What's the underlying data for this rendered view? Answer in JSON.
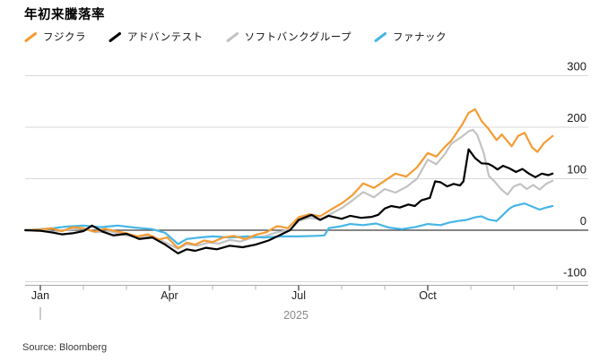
{
  "header": {
    "title": "年初来騰落率"
  },
  "legend": {
    "items": [
      {
        "label": "フジクラ",
        "color": "#F59B32"
      },
      {
        "label": "アドバンテスト",
        "color": "#000000"
      },
      {
        "label": "ソフトバンクグループ",
        "color": "#C3C3C3"
      },
      {
        "label": "ファナック",
        "color": "#46B6E6"
      }
    ]
  },
  "footer": {
    "source": "Source: Bloomberg"
  },
  "chart_data": {
    "type": "line",
    "title": "年初来騰落率",
    "ylabel": "",
    "xlabel": "",
    "x_unit": "months since 2025-01-01",
    "ylim": [
      -100,
      300
    ],
    "grid": "horizontal",
    "legend_position": "top",
    "y_axis": {
      "side": "right",
      "ticks": [
        -100,
        0,
        100,
        200,
        300
      ],
      "zero_line": true
    },
    "x_axis": {
      "year_label": "2025",
      "major_ticks": [
        {
          "label": "Jan",
          "month": 0
        },
        {
          "label": "Apr",
          "month": 3
        },
        {
          "label": "Jul",
          "month": 6
        },
        {
          "label": "Oct",
          "month": 9
        }
      ],
      "minor_tick_months": [
        1,
        2,
        4,
        5,
        7,
        8,
        10,
        11,
        12
      ]
    },
    "series": [
      {
        "name": "フジクラ",
        "key": "fujikura",
        "color": "#F59B32",
        "points": [
          [
            -0.35,
            0
          ],
          [
            0,
            1
          ],
          [
            0.25,
            4
          ],
          [
            0.5,
            -2
          ],
          [
            0.75,
            6
          ],
          [
            1,
            4
          ],
          [
            1.25,
            -3
          ],
          [
            1.5,
            3
          ],
          [
            1.75,
            -2
          ],
          [
            2,
            -6
          ],
          [
            2.25,
            -12
          ],
          [
            2.5,
            -8
          ],
          [
            2.75,
            -18
          ],
          [
            2.95,
            -14
          ],
          [
            3.2,
            -35
          ],
          [
            3.4,
            -24
          ],
          [
            3.6,
            -28
          ],
          [
            3.8,
            -20
          ],
          [
            4,
            -23
          ],
          [
            4.25,
            -14
          ],
          [
            4.5,
            -11
          ],
          [
            4.75,
            -17
          ],
          [
            5,
            -9
          ],
          [
            5.25,
            -4
          ],
          [
            5.5,
            8
          ],
          [
            5.75,
            4
          ],
          [
            6,
            25
          ],
          [
            6.25,
            31
          ],
          [
            6.5,
            27
          ],
          [
            6.75,
            40
          ],
          [
            7,
            52
          ],
          [
            7.25,
            68
          ],
          [
            7.5,
            91
          ],
          [
            7.75,
            82
          ],
          [
            8,
            96
          ],
          [
            8.25,
            110
          ],
          [
            8.5,
            104
          ],
          [
            8.75,
            122
          ],
          [
            9,
            150
          ],
          [
            9.2,
            143
          ],
          [
            9.4,
            162
          ],
          [
            9.55,
            174
          ],
          [
            9.8,
            205
          ],
          [
            9.95,
            228
          ],
          [
            10.1,
            235
          ],
          [
            10.25,
            212
          ],
          [
            10.4,
            198
          ],
          [
            10.6,
            175
          ],
          [
            10.72,
            186
          ],
          [
            10.95,
            163
          ],
          [
            11.1,
            183
          ],
          [
            11.25,
            189
          ],
          [
            11.42,
            161
          ],
          [
            11.55,
            152
          ],
          [
            11.7,
            169
          ],
          [
            11.9,
            183
          ]
        ]
      },
      {
        "name": "アドバンテスト",
        "key": "advantest",
        "color": "#000000",
        "points": [
          [
            -0.35,
            0
          ],
          [
            0,
            -1
          ],
          [
            0.25,
            -4
          ],
          [
            0.5,
            -8
          ],
          [
            0.75,
            -6
          ],
          [
            1,
            -2
          ],
          [
            1.2,
            9
          ],
          [
            1.45,
            -3
          ],
          [
            1.7,
            -10
          ],
          [
            2,
            -7
          ],
          [
            2.3,
            -17
          ],
          [
            2.6,
            -14
          ],
          [
            2.9,
            -28
          ],
          [
            3.2,
            -45
          ],
          [
            3.4,
            -37
          ],
          [
            3.6,
            -40
          ],
          [
            3.85,
            -34
          ],
          [
            4.1,
            -37
          ],
          [
            4.4,
            -30
          ],
          [
            4.7,
            -33
          ],
          [
            5,
            -28
          ],
          [
            5.3,
            -20
          ],
          [
            5.6,
            -8
          ],
          [
            5.8,
            0
          ],
          [
            6,
            20
          ],
          [
            6.3,
            30
          ],
          [
            6.5,
            20
          ],
          [
            6.7,
            28
          ],
          [
            7,
            22
          ],
          [
            7.2,
            28
          ],
          [
            7.45,
            24
          ],
          [
            7.7,
            26
          ],
          [
            7.85,
            30
          ],
          [
            8,
            42
          ],
          [
            8.15,
            47
          ],
          [
            8.35,
            44
          ],
          [
            8.55,
            50
          ],
          [
            8.7,
            47
          ],
          [
            8.85,
            58
          ],
          [
            9.05,
            63
          ],
          [
            9.17,
            95
          ],
          [
            9.3,
            93
          ],
          [
            9.45,
            85
          ],
          [
            9.6,
            90
          ],
          [
            9.75,
            87
          ],
          [
            9.83,
            95
          ],
          [
            9.95,
            157
          ],
          [
            10.1,
            140
          ],
          [
            10.25,
            130
          ],
          [
            10.4,
            129
          ],
          [
            10.5,
            125
          ],
          [
            10.62,
            118
          ],
          [
            10.75,
            125
          ],
          [
            10.9,
            120
          ],
          [
            11.05,
            113
          ],
          [
            11.2,
            119
          ],
          [
            11.35,
            110
          ],
          [
            11.5,
            103
          ],
          [
            11.65,
            110
          ],
          [
            11.8,
            107
          ],
          [
            11.9,
            110
          ]
        ]
      },
      {
        "name": "ソフトバンクグループ",
        "key": "softbank-group",
        "color": "#C3C3C3",
        "points": [
          [
            -0.35,
            0
          ],
          [
            0,
            1
          ],
          [
            0.3,
            -3
          ],
          [
            0.6,
            1
          ],
          [
            1,
            3
          ],
          [
            1.3,
            -4
          ],
          [
            1.6,
            -2
          ],
          [
            2,
            -10
          ],
          [
            2.3,
            -14
          ],
          [
            2.6,
            -11
          ],
          [
            2.9,
            -24
          ],
          [
            3.2,
            -36
          ],
          [
            3.4,
            -27
          ],
          [
            3.65,
            -30
          ],
          [
            3.9,
            -24
          ],
          [
            4.15,
            -26
          ],
          [
            4.4,
            -19
          ],
          [
            4.65,
            -22
          ],
          [
            4.9,
            -15
          ],
          [
            5.2,
            -12
          ],
          [
            5.5,
            -4
          ],
          [
            5.8,
            1
          ],
          [
            6,
            18
          ],
          [
            6.25,
            24
          ],
          [
            6.5,
            21
          ],
          [
            6.75,
            32
          ],
          [
            7,
            43
          ],
          [
            7.25,
            58
          ],
          [
            7.5,
            74
          ],
          [
            7.75,
            64
          ],
          [
            8,
            80
          ],
          [
            8.25,
            73
          ],
          [
            8.5,
            84
          ],
          [
            8.75,
            100
          ],
          [
            9,
            137
          ],
          [
            9.2,
            128
          ],
          [
            9.4,
            148
          ],
          [
            9.55,
            168
          ],
          [
            9.8,
            182
          ],
          [
            9.95,
            192
          ],
          [
            10.05,
            195
          ],
          [
            10.15,
            185
          ],
          [
            10.3,
            150
          ],
          [
            10.42,
            105
          ],
          [
            10.55,
            95
          ],
          [
            10.7,
            80
          ],
          [
            10.85,
            69
          ],
          [
            11,
            85
          ],
          [
            11.15,
            90
          ],
          [
            11.3,
            80
          ],
          [
            11.45,
            88
          ],
          [
            11.6,
            79
          ],
          [
            11.75,
            90
          ],
          [
            11.9,
            96
          ]
        ]
      },
      {
        "name": "ファナック",
        "key": "fanuc",
        "color": "#46B6E6",
        "points": [
          [
            -0.35,
            0
          ],
          [
            0,
            2
          ],
          [
            0.3,
            4
          ],
          [
            0.6,
            7
          ],
          [
            1,
            9
          ],
          [
            1.4,
            6
          ],
          [
            1.8,
            9
          ],
          [
            2.2,
            5
          ],
          [
            2.6,
            2
          ],
          [
            2.9,
            -5
          ],
          [
            3.2,
            -27
          ],
          [
            3.4,
            -17
          ],
          [
            3.7,
            -14
          ],
          [
            4,
            -12
          ],
          [
            4.4,
            -14
          ],
          [
            4.8,
            -12
          ],
          [
            5.2,
            -14
          ],
          [
            5.6,
            -12
          ],
          [
            6,
            -12
          ],
          [
            6.4,
            -11
          ],
          [
            6.6,
            -10
          ],
          [
            6.7,
            4
          ],
          [
            7,
            8
          ],
          [
            7.2,
            12
          ],
          [
            7.5,
            10
          ],
          [
            7.8,
            13
          ],
          [
            8.1,
            5
          ],
          [
            8.4,
            2
          ],
          [
            8.7,
            6
          ],
          [
            9,
            12
          ],
          [
            9.3,
            10
          ],
          [
            9.5,
            15
          ],
          [
            9.7,
            18
          ],
          [
            9.9,
            20
          ],
          [
            10.1,
            25
          ],
          [
            10.25,
            27
          ],
          [
            10.4,
            21
          ],
          [
            10.6,
            18
          ],
          [
            10.75,
            30
          ],
          [
            10.9,
            42
          ],
          [
            11,
            47
          ],
          [
            11.25,
            52
          ],
          [
            11.45,
            45
          ],
          [
            11.6,
            40
          ],
          [
            11.75,
            44
          ],
          [
            11.9,
            47
          ]
        ]
      }
    ]
  }
}
